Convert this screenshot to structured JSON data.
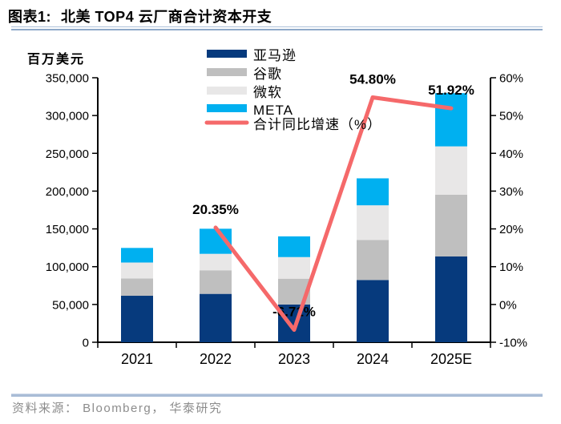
{
  "header": {
    "figure_label": "图表1:",
    "title": "北美 TOP4 云厂商合计资本开支"
  },
  "footer": {
    "source": "资料来源： Bloomberg， 华泰研究"
  },
  "chart_data": {
    "type": "bar",
    "subtype": "stacked-bars-with-growth-line",
    "title": "北美 TOP4 云厂商合计资本开支",
    "unit_label": "百万美元",
    "grid": false,
    "legend_position": "top-center",
    "categories": [
      "2021",
      "2022",
      "2023",
      "2024",
      "2025E"
    ],
    "series": [
      {
        "name": "亚马逊",
        "color": "#063a7d",
        "values": [
          61500,
          64000,
          49900,
          82400,
          113500
        ]
      },
      {
        "name": "谷歌",
        "color": "#bfbfbf",
        "values": [
          23000,
          31200,
          34200,
          53000,
          81700
        ]
      },
      {
        "name": "微软",
        "color": "#e8e7e7",
        "values": [
          21000,
          21800,
          28600,
          45800,
          64000
        ]
      },
      {
        "name": "META",
        "color": "#00b0f0",
        "values": [
          19300,
          33200,
          27400,
          35700,
          70400
        ]
      }
    ],
    "totals": [
      124800,
      150200,
      140100,
      216900,
      329600
    ],
    "line_series": {
      "name": "合计同比增速（%）",
      "color": "#f5696a",
      "label_color": "#f8494c",
      "values": [
        null,
        20.35,
        -6.71,
        54.8,
        51.92
      ],
      "point_labels": [
        "",
        "20.35%",
        "-6.71%",
        "54.80%",
        "51.92%"
      ]
    },
    "left_axis": {
      "min": 0,
      "max": 350000,
      "step": 50000,
      "tick_labels": [
        "0",
        "50,000",
        "100,000",
        "150,000",
        "200,000",
        "250,000",
        "300,000",
        "350,000"
      ]
    },
    "right_axis": {
      "min": -10,
      "max": 60,
      "step": 10,
      "tick_labels": [
        "-10%",
        "0%",
        "10%",
        "20%",
        "30%",
        "40%",
        "50%",
        "60%"
      ]
    }
  }
}
